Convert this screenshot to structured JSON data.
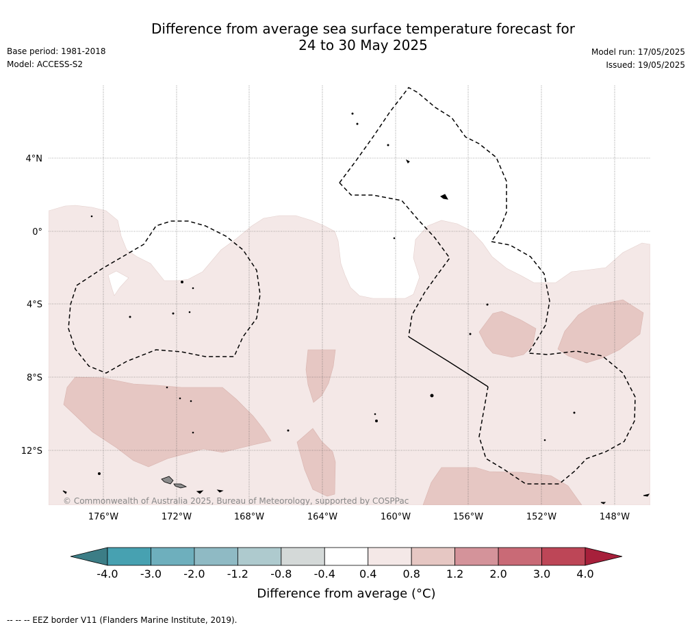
{
  "title": {
    "line1": "Difference from average sea surface temperature forecast for",
    "line2": "24 to 30 May 2025"
  },
  "meta_left": {
    "base_period": "Base period: 1981-2018",
    "model": "Model: ACCESS-S2"
  },
  "meta_right": {
    "model_run": "Model run: 17/05/2025",
    "issued": "Issued: 19/05/2025"
  },
  "map": {
    "lat_labels": [
      "4°N",
      "0°",
      "4°S",
      "8°S",
      "12°S"
    ],
    "lat_values": [
      4,
      0,
      -4,
      -8,
      -12
    ],
    "lon_labels": [
      "176°W",
      "172°W",
      "168°W",
      "164°W",
      "160°W",
      "156°W",
      "152°W",
      "148°W"
    ],
    "lon_values": [
      -176,
      -172,
      -168,
      -164,
      -160,
      -156,
      -152,
      -148
    ],
    "copyright": "© Commonwealth of Australia 2025, Bureau of Meteorology, supported by COSPPac"
  },
  "colorbar": {
    "ticks": [
      "-4.0",
      "-3.0",
      "-2.0",
      "-1.2",
      "-0.8",
      "-0.4",
      "0.4",
      "0.8",
      "1.2",
      "2.0",
      "3.0",
      "4.0"
    ],
    "colors": [
      "#47a1b1",
      "#6eafbd",
      "#8fbac4",
      "#aecace",
      "#d4d9d8",
      "#ffffff",
      "#f4e8e7",
      "#e6c7c3",
      "#d4939a",
      "#c96a76",
      "#bd4657"
    ],
    "low_extend_color": "#3c7d86",
    "high_extend_color": "#a7203b",
    "label": "Difference from average (°C)"
  },
  "legend": {
    "eez": "--  --  -- EEZ border V11 (Flanders Marine Institute, 2019)."
  },
  "colors": {
    "anomaly_0_4_to_0_8": "#f4e8e7",
    "anomaly_0_8_to_1_2": "#e6c7c3",
    "land": "#8c8c8c"
  }
}
